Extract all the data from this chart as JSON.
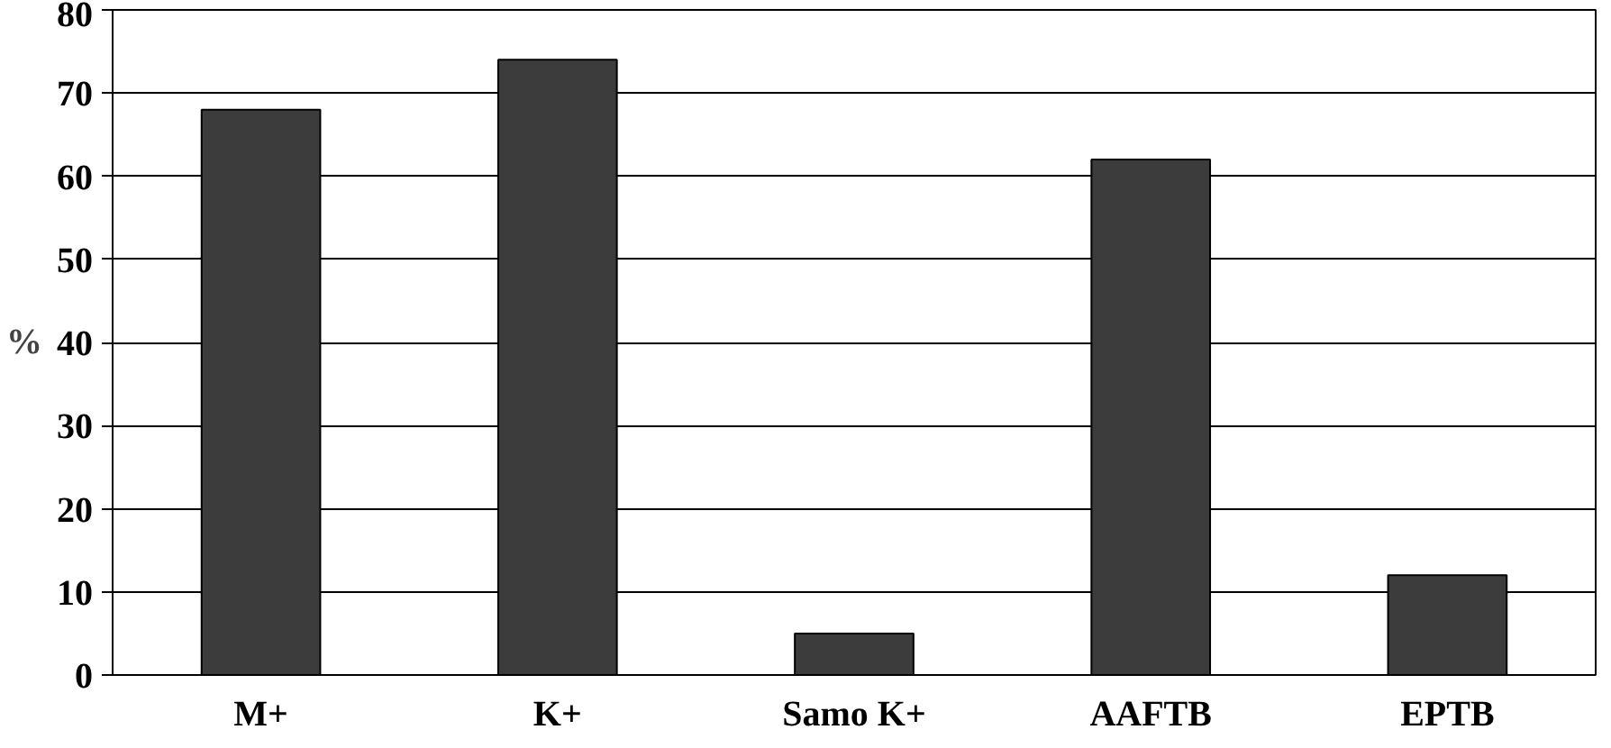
{
  "chart_data": {
    "type": "bar",
    "ylabel": "%",
    "categories": [
      "M+",
      "K+",
      "Samo K+",
      "AAFTB",
      "EPTB"
    ],
    "values": [
      68,
      74,
      5,
      62,
      12
    ],
    "color": "#3c3c3c",
    "ylim": [
      0,
      80
    ],
    "yticks": [
      0,
      10,
      20,
      30,
      40,
      50,
      60,
      70,
      80
    ],
    "grid": "y"
  }
}
